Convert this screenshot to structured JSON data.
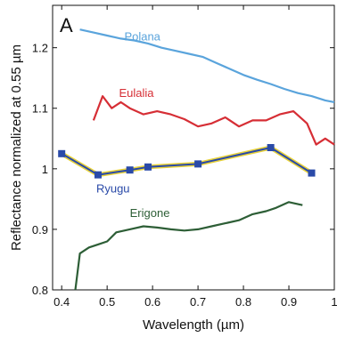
{
  "chart_data": {
    "type": "line",
    "panel_label": "A",
    "xlabel": "Wavelength (µm)",
    "ylabel": "Reflectance normalized at 0.55 µm",
    "xlim": [
      0.38,
      1.0
    ],
    "ylim": [
      0.8,
      1.27
    ],
    "x_ticks": [
      {
        "value": 0.4,
        "label": "0.4"
      },
      {
        "value": 0.5,
        "label": "0.5"
      },
      {
        "value": 0.6,
        "label": "0.6"
      },
      {
        "value": 0.7,
        "label": "0.7"
      },
      {
        "value": 0.8,
        "label": "0.8"
      },
      {
        "value": 0.9,
        "label": "0.9"
      },
      {
        "value": 1.0,
        "label": "1"
      }
    ],
    "y_ticks": [
      {
        "value": 0.8,
        "label": "0.8"
      },
      {
        "value": 0.9,
        "label": "0.9"
      },
      {
        "value": 1.0,
        "label": "1"
      },
      {
        "value": 1.1,
        "label": "1.1"
      },
      {
        "value": 1.2,
        "label": "1.2"
      }
    ],
    "grid": false,
    "series": [
      {
        "name": "Polana",
        "color": "#5aa4dc",
        "x": [
          0.44,
          0.47,
          0.5,
          0.53,
          0.56,
          0.59,
          0.62,
          0.65,
          0.68,
          0.71,
          0.74,
          0.77,
          0.8,
          0.83,
          0.86,
          0.89,
          0.92,
          0.95,
          0.98,
          1.0
        ],
        "y": [
          1.23,
          1.225,
          1.22,
          1.215,
          1.212,
          1.207,
          1.2,
          1.195,
          1.19,
          1.185,
          1.175,
          1.165,
          1.155,
          1.147,
          1.14,
          1.132,
          1.125,
          1.12,
          1.113,
          1.11
        ]
      },
      {
        "name": "Eulalia",
        "color": "#d62e35",
        "x": [
          0.47,
          0.49,
          0.51,
          0.53,
          0.55,
          0.58,
          0.61,
          0.64,
          0.67,
          0.7,
          0.73,
          0.76,
          0.79,
          0.82,
          0.85,
          0.88,
          0.91,
          0.94,
          0.96,
          0.98,
          1.0
        ],
        "y": [
          1.08,
          1.12,
          1.1,
          1.11,
          1.1,
          1.09,
          1.095,
          1.09,
          1.082,
          1.07,
          1.075,
          1.085,
          1.07,
          1.08,
          1.08,
          1.09,
          1.095,
          1.075,
          1.04,
          1.05,
          1.04
        ]
      },
      {
        "name": "Ryugu",
        "color": "#2a4aa8",
        "x": [
          0.4,
          0.48,
          0.55,
          0.59,
          0.7,
          0.86,
          0.95
        ],
        "y": [
          1.025,
          0.99,
          0.998,
          1.003,
          1.008,
          1.035,
          0.993
        ]
      },
      {
        "name": "Erigone",
        "color": "#2d5e36",
        "x": [
          0.43,
          0.44,
          0.46,
          0.48,
          0.5,
          0.52,
          0.55,
          0.58,
          0.61,
          0.64,
          0.67,
          0.7,
          0.73,
          0.76,
          0.79,
          0.82,
          0.85,
          0.87,
          0.9,
          0.93
        ],
        "y": [
          0.8,
          0.86,
          0.87,
          0.875,
          0.88,
          0.895,
          0.9,
          0.905,
          0.903,
          0.9,
          0.898,
          0.9,
          0.905,
          0.91,
          0.915,
          0.925,
          0.93,
          0.935,
          0.945,
          0.94
        ]
      }
    ]
  }
}
